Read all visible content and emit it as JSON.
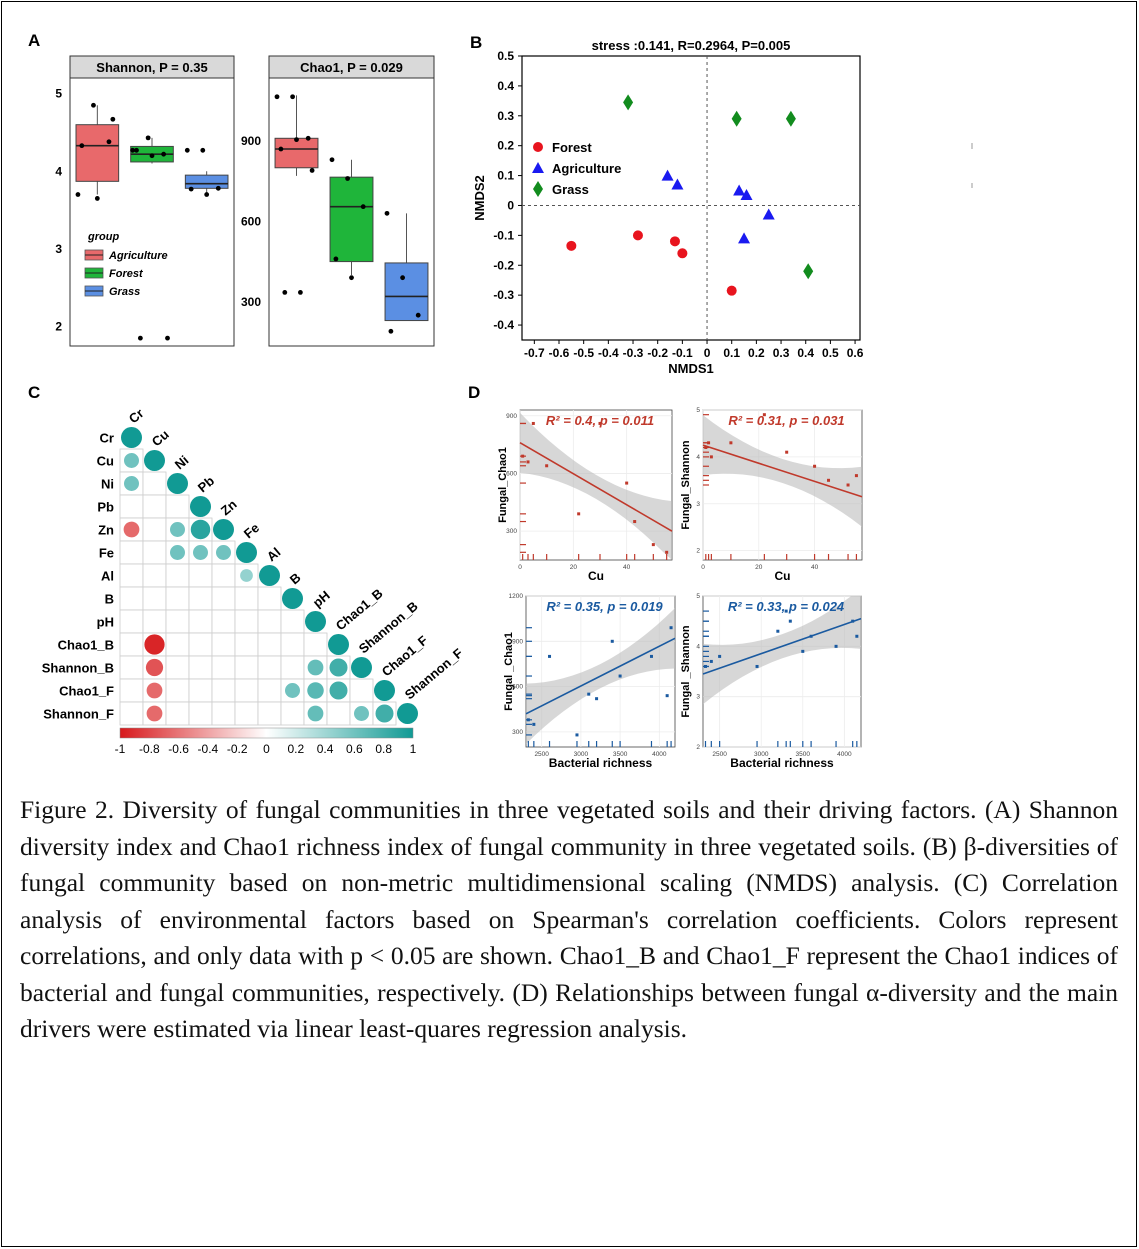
{
  "panel_labels": [
    "A",
    "B",
    "C",
    "D"
  ],
  "chart_data": [
    {
      "type": "box",
      "panel": "A",
      "facets": [
        {
          "title": "Shannon, P = 0.35",
          "yticks": [
            2,
            3,
            4,
            5
          ],
          "ylim": [
            1.8,
            5.15
          ],
          "groups": [
            {
              "name": "Agriculture",
              "color": "#e8696b",
              "q1": 3.87,
              "median": 4.33,
              "q3": 4.6,
              "whisker_low": 3.7,
              "whisker_high": 4.85,
              "points": [
                3.7,
                4.85,
                4.38,
                4.33,
                3.65,
                4.67
              ]
            },
            {
              "name": "Forest",
              "color": "#1fb53a",
              "q1": 4.12,
              "median": 4.22,
              "q3": 4.32,
              "whisker_low": 4.1,
              "whisker_high": 4.43,
              "points": [
                4.27,
                4.43,
                4.22,
                4.27,
                4.2,
                1.85,
                1.85
              ]
            },
            {
              "name": "Grass",
              "color": "#5b8fe3",
              "q1": 3.78,
              "median": 3.84,
              "q3": 3.95,
              "whisker_low": 3.7,
              "whisker_high": 4.0,
              "points": [
                4.27,
                4.27,
                3.78,
                3.77,
                3.7
              ]
            }
          ]
        },
        {
          "title": "Chao1, P = 0.029",
          "yticks": [
            300,
            600,
            900
          ],
          "ylim": [
            150,
            1120
          ],
          "groups": [
            {
              "name": "Agriculture",
              "color": "#e8696b",
              "q1": 800,
              "median": 870,
              "q3": 910,
              "whisker_low": 770,
              "whisker_high": 1070,
              "points": [
                1065,
                1065,
                910,
                870,
                905,
                790,
                335,
                335
              ]
            },
            {
              "name": "Forest",
              "color": "#1fb53a",
              "q1": 450,
              "median": 655,
              "q3": 765,
              "whisker_low": 400,
              "whisker_high": 830,
              "points": [
                830,
                760,
                655,
                460,
                390
              ]
            },
            {
              "name": "Grass",
              "color": "#5b8fe3",
              "q1": 230,
              "median": 320,
              "q3": 445,
              "whisker_low": 230,
              "whisker_high": 630,
              "points": [
                630,
                390,
                250,
                190
              ]
            }
          ]
        }
      ],
      "legend": {
        "title": "group",
        "entries": [
          "Agriculture",
          "Forest",
          "Grass"
        ]
      }
    },
    {
      "type": "scatter",
      "panel": "B",
      "title": "stress :0.141, R=0.2964, P=0.005",
      "xlabel": "NMDS1",
      "ylabel": "NMDS2",
      "xlim": [
        -0.75,
        0.62
      ],
      "ylim": [
        -0.45,
        0.5
      ],
      "xticks": [
        "-0.7",
        "-0.6",
        "-0.5",
        "-0.4",
        "-0.3",
        "-0.2",
        "-0.1",
        "0",
        "0.1",
        "0.2",
        "0.3",
        "0.4",
        "0.5",
        "0.6"
      ],
      "xtick_values": [
        -0.7,
        -0.6,
        -0.5,
        -0.4,
        -0.3,
        -0.2,
        -0.1,
        0,
        0.1,
        0.2,
        0.3,
        0.4,
        0.5,
        0.6
      ],
      "yticks": [
        "-0.4",
        "-0.3",
        "-0.2",
        "-0.1",
        "0",
        "0.1",
        "0.2",
        "0.3",
        "0.4",
        "0.5"
      ],
      "ytick_values": [
        -0.4,
        -0.3,
        -0.2,
        -0.1,
        0,
        0.1,
        0.2,
        0.3,
        0.4,
        0.5
      ],
      "series": [
        {
          "name": "Forest",
          "color": "#e8141e",
          "shape": "circle",
          "x": [
            -0.55,
            -0.28,
            -0.13,
            -0.1,
            0.1
          ],
          "y": [
            -0.135,
            -0.1,
            -0.12,
            -0.16,
            -0.285
          ]
        },
        {
          "name": "Agriculture",
          "color": "#1a1af0",
          "shape": "triangle",
          "x": [
            -0.16,
            -0.12,
            0.13,
            0.16,
            0.25,
            0.15
          ],
          "y": [
            0.1,
            0.07,
            0.05,
            0.035,
            -0.03,
            -0.11
          ]
        },
        {
          "name": "Grass",
          "color": "#128c1e",
          "shape": "diamond",
          "x": [
            -0.32,
            0.12,
            0.34,
            0.41
          ],
          "y": [
            0.345,
            0.29,
            0.29,
            -0.22
          ]
        }
      ]
    },
    {
      "type": "heatmap",
      "panel": "C",
      "labels": [
        "Cr",
        "Cu",
        "Ni",
        "Pb",
        "Zn",
        "Fe",
        "Al",
        "B",
        "pH",
        "Chao1_B",
        "Shannon_B",
        "Chao1_F",
        "Shannon_F"
      ],
      "cells": [
        {
          "row": "Cu",
          "col": "Cr",
          "r": 0.6
        },
        {
          "row": "Ni",
          "col": "Cr",
          "r": 0.6
        },
        {
          "row": "Zn",
          "col": "Cr",
          "r": -0.65
        },
        {
          "row": "Zn",
          "col": "Ni",
          "r": 0.6
        },
        {
          "row": "Zn",
          "col": "Pb",
          "r": 0.9
        },
        {
          "row": "Fe",
          "col": "Ni",
          "r": 0.6
        },
        {
          "row": "Fe",
          "col": "Pb",
          "r": 0.6
        },
        {
          "row": "Fe",
          "col": "Zn",
          "r": 0.6
        },
        {
          "row": "Al",
          "col": "Fe",
          "r": 0.45
        },
        {
          "row": "Chao1_B",
          "col": "Cu",
          "r": -0.95
        },
        {
          "row": "Shannon_B",
          "col": "Cu",
          "r": -0.75
        },
        {
          "row": "Shannon_B",
          "col": "pH",
          "r": 0.65
        },
        {
          "row": "Shannon_B",
          "col": "Chao1_B",
          "r": 0.8
        },
        {
          "row": "Chao1_F",
          "col": "Cu",
          "r": -0.65
        },
        {
          "row": "Chao1_F",
          "col": "B",
          "r": 0.6
        },
        {
          "row": "Chao1_F",
          "col": "pH",
          "r": 0.7
        },
        {
          "row": "Chao1_F",
          "col": "Chao1_B",
          "r": 0.8
        },
        {
          "row": "Shannon_F",
          "col": "Cu",
          "r": -0.65
        },
        {
          "row": "Shannon_F",
          "col": "pH",
          "r": 0.65
        },
        {
          "row": "Shannon_F",
          "col": "Shannon_B",
          "r": 0.6
        },
        {
          "row": "Shannon_F",
          "col": "Chao1_F",
          "r": 0.8
        }
      ],
      "colorbar_ticks": [
        "-1",
        "-0.8",
        "-0.6",
        "-0.4",
        "-0.2",
        "0",
        "0.2",
        "0.4",
        "0.6",
        "0.8",
        "1"
      ],
      "colors": {
        "negative": "#d7191c",
        "zero": "#ffffff",
        "positive": "#119a94"
      }
    },
    {
      "type": "scatter",
      "panel": "D",
      "subplots": [
        {
          "annotation": "R² = 0.4, p = 0.011",
          "color": "#c0392b",
          "xlabel": "Cu",
          "ylabel": "Fungal_Chao1",
          "xlim": [
            0,
            57
          ],
          "ylim": [
            150,
            930
          ],
          "xticks": [
            0,
            20,
            40
          ],
          "yticks": [
            300,
            600,
            900
          ],
          "x": [
            1,
            3,
            5,
            10,
            22,
            30,
            40,
            43,
            50,
            55
          ],
          "y": [
            690,
            660,
            860,
            640,
            390,
            860,
            550,
            350,
            230,
            190
          ],
          "fit": [
            [
              0,
              760
            ],
            [
              57,
              300
            ]
          ]
        },
        {
          "annotation": "R² = 0.31, p = 0.031",
          "color": "#c0392b",
          "xlabel": "Cu",
          "ylabel": "Fungal_Shannon",
          "xlim": [
            0,
            57
          ],
          "ylim": [
            1.8,
            5.0
          ],
          "xticks": [
            0,
            20,
            40
          ],
          "yticks": [
            2,
            3,
            4,
            5
          ],
          "x": [
            1,
            2,
            3,
            10,
            22,
            30,
            40,
            45,
            52,
            55
          ],
          "y": [
            4.2,
            4.3,
            4.0,
            4.3,
            4.9,
            4.1,
            3.8,
            3.5,
            3.4,
            3.6
          ],
          "fit": [
            [
              0,
              4.25
            ],
            [
              57,
              3.15
            ]
          ]
        },
        {
          "annotation": "R² = 0.35, p = 0.019",
          "color": "#1a5aa0",
          "xlabel": "Bacterial richness",
          "ylabel": "Fungal _Chao1",
          "xlim": [
            2300,
            4200
          ],
          "ylim": [
            200,
            1200
          ],
          "xticks": [
            2500,
            3000,
            3500,
            4000
          ],
          "yticks": [
            300,
            600,
            900,
            1200
          ],
          "x": [
            2330,
            2400,
            2600,
            2950,
            3100,
            3200,
            3400,
            3500,
            3900,
            4100,
            4150
          ],
          "y": [
            380,
            350,
            800,
            280,
            550,
            520,
            900,
            670,
            800,
            540,
            990
          ],
          "fit": [
            [
              2300,
              420
            ],
            [
              4200,
              920
            ]
          ]
        },
        {
          "annotation": "R² = 0.33, p = 0.024",
          "color": "#1a5aa0",
          "xlabel": "Bacterial richness",
          "ylabel": "Fungal _Shannon",
          "xlim": [
            2300,
            4200
          ],
          "ylim": [
            2,
            5
          ],
          "xticks": [
            2500,
            3000,
            3500,
            4000
          ],
          "yticks": [
            2,
            3,
            4,
            5
          ],
          "x": [
            2330,
            2400,
            2500,
            2950,
            3200,
            3300,
            3350,
            3500,
            3600,
            3900,
            4100,
            4150
          ],
          "y": [
            3.6,
            3.7,
            3.8,
            3.6,
            4.3,
            4.7,
            4.5,
            3.9,
            4.2,
            4.0,
            4.5,
            4.2
          ],
          "fit": [
            [
              2300,
              3.45
            ],
            [
              4200,
              4.55
            ]
          ]
        }
      ]
    }
  ],
  "caption": "Figure 2. Diversity of fungal communities in three vegetated soils and their driving factors. (A) Shannon diversity index and Chao1 richness index of fungal community in three vegetated soils. (B) β-diversities of fungal community based on non-metric multidimensional scaling (NMDS) analysis. (C) Correlation analysis of environmental factors based on Spearman's correlation coefficients. Colors represent correlations, and only data with p < 0.05 are shown. Chao1_B and Chao1_F represent the Chao1 indices of bacterial and fungal communities, respectively. (D) Relationships between fungal α-diversity and the main drivers were estimated via linear least-quares regression analysis."
}
